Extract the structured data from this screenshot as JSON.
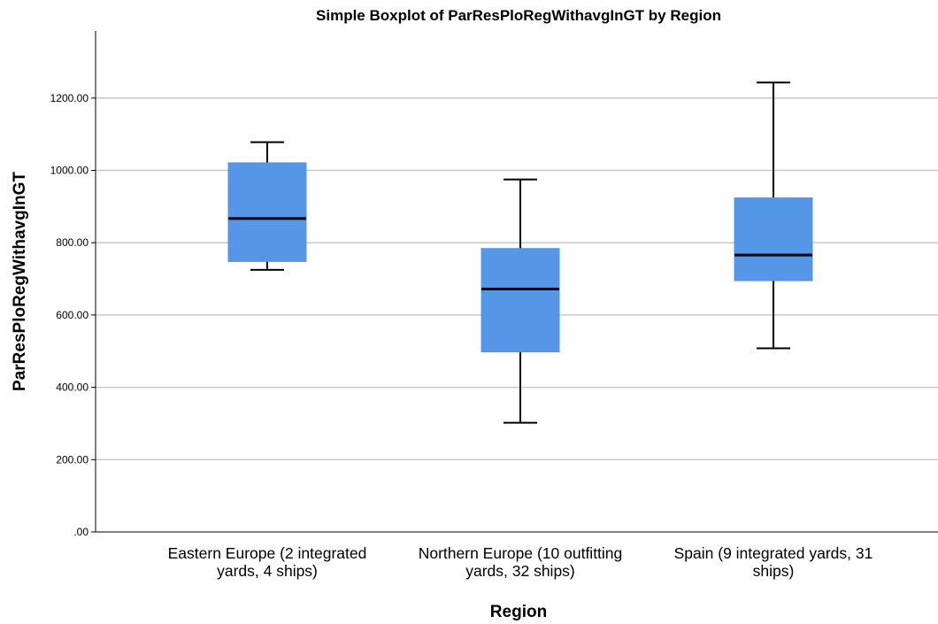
{
  "chart_data": {
    "type": "boxplot",
    "title": "Simple Boxplot of ParResPloRegWithavgInGT by Region",
    "xlabel": "Region",
    "ylabel": "ParResPloRegWithavgInGT",
    "ylim": [
      0,
      1380
    ],
    "yticks": [
      0,
      200,
      400,
      600,
      800,
      1000,
      1200
    ],
    "ytick_labels": [
      ".00",
      "200.00",
      "400.00",
      "600.00",
      "800.00",
      "1000.00",
      "1200.00"
    ],
    "grid": true,
    "categories": [
      [
        "Eastern Europe (2 integrated",
        "yards, 4 ships)"
      ],
      [
        "Northern Europe (10 outfitting",
        "yards, 32 ships)"
      ],
      [
        "Spain (9 integrated yards, 31",
        "ships)"
      ]
    ],
    "boxes": [
      {
        "min": 725,
        "q1": 748,
        "median": 867,
        "q3": 1021,
        "max": 1078
      },
      {
        "min": 302,
        "q1": 498,
        "median": 672,
        "q3": 784,
        "max": 975
      },
      {
        "min": 508,
        "q1": 695,
        "median": 766,
        "q3": 924,
        "max": 1243
      }
    ],
    "colors": {
      "box_fill": "#5597e6",
      "gridline": "#c8c8c8",
      "median": "#000000"
    }
  }
}
